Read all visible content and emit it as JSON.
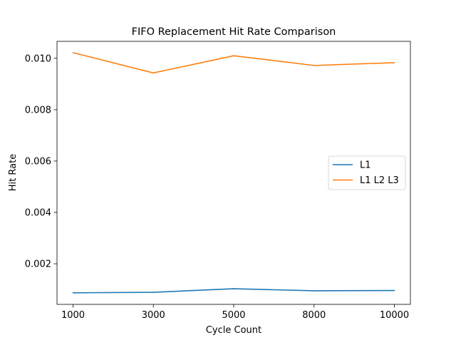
{
  "chart_data": {
    "type": "line",
    "title": "FIFO Replacement Hit Rate Comparison",
    "xlabel": "Cycle Count",
    "ylabel": "Hit Rate",
    "categories": [
      "1000",
      "3000",
      "5000",
      "8000",
      "10000"
    ],
    "y_ticks": [
      0.002,
      0.004,
      0.006,
      0.008,
      0.01
    ],
    "y_tick_labels": [
      "0.002",
      "0.004",
      "0.006",
      "0.008",
      "0.010"
    ],
    "ylim": [
      0.00042,
      0.01066
    ],
    "grid": false,
    "legend_position": "center-right",
    "series": [
      {
        "name": "L1",
        "color": "#1f77b4",
        "values": [
          0.00087,
          0.00089,
          0.00103,
          0.00095,
          0.00096
        ]
      },
      {
        "name": "L1 L2 L3",
        "color": "#ff7f0e",
        "values": [
          0.01022,
          0.00943,
          0.0101,
          0.00972,
          0.00983
        ]
      }
    ]
  }
}
